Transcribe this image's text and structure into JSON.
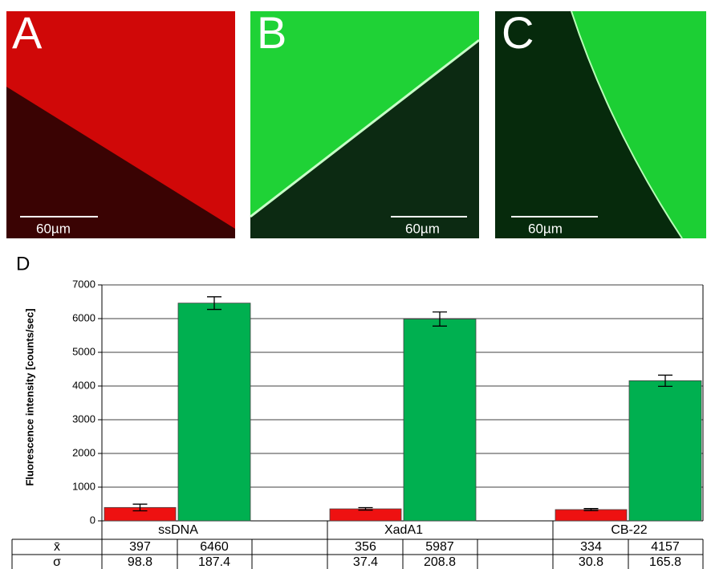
{
  "panels": [
    {
      "label": "A",
      "scale_bar": "60µm"
    },
    {
      "label": "B",
      "scale_bar": "60µm"
    },
    {
      "label": "C",
      "scale_bar": "60µm"
    }
  ],
  "chart_data": {
    "type": "bar",
    "label": "D",
    "y_label": "Fluorescence intensity [counts/sec]",
    "categories": [
      "ssDNA",
      "XadA1",
      "CB-22"
    ],
    "series": [
      {
        "color": "#ee1111",
        "values": [
          397,
          356,
          334
        ],
        "errors": [
          98.8,
          37.4,
          30.8
        ]
      },
      {
        "color": "#00b050",
        "values": [
          6460,
          5987,
          4157
        ],
        "errors": [
          187.4,
          208.8,
          165.8
        ]
      }
    ],
    "ylim": [
      0,
      7000
    ],
    "yticks": [
      0,
      1000,
      2000,
      3000,
      4000,
      5000,
      6000,
      7000
    ],
    "grid": true,
    "table_row_labels": [
      "x̄",
      "σ"
    ]
  }
}
